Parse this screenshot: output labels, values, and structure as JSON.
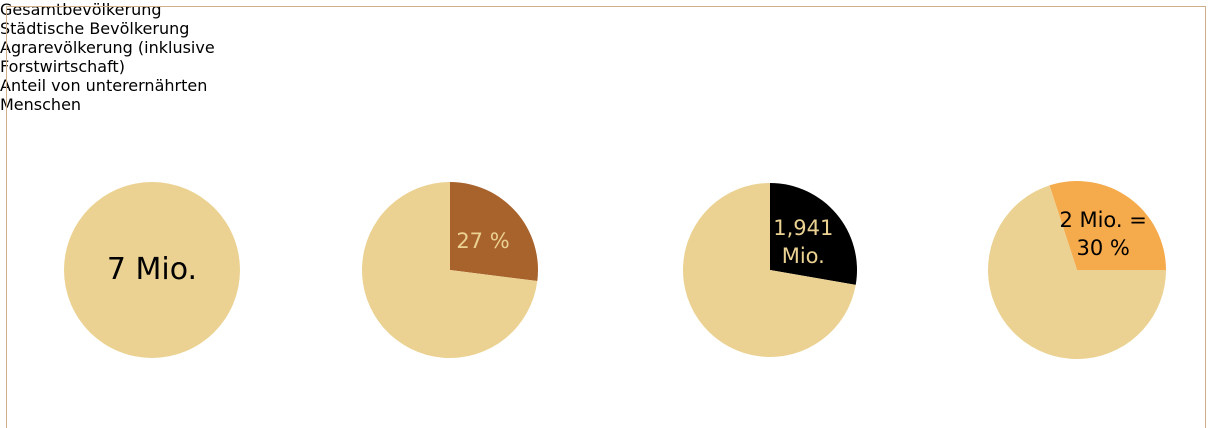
{
  "chart_data": [
    {
      "type": "pie",
      "title": "Gesamtbevölkerung",
      "values": [
        7
      ],
      "value_labels": [
        "7 Mio."
      ],
      "colors": [
        "#ebd292"
      ],
      "label_color": "#000000",
      "start_angle": 0
    },
    {
      "type": "pie",
      "title": "Städtische Bevölkerung",
      "values": [
        27,
        73
      ],
      "value_labels": [
        "27 %",
        null
      ],
      "colors": [
        "#a8622c",
        "#ebd292"
      ],
      "label_color": "#ebd292",
      "start_angle": 0
    },
    {
      "type": "pie",
      "title": "Agrarevölkerung (inklusive Forstwirtschaft)",
      "values": [
        1.941,
        5.059
      ],
      "value_labels": [
        "1,941 Mio.",
        null
      ],
      "colors": [
        "#000000",
        "#ebd292"
      ],
      "label_color": "#ebd292",
      "start_angle": 0
    },
    {
      "type": "pie",
      "title": "Anteil von unterernährten Menschen",
      "values": [
        30,
        70
      ],
      "value_labels": [
        "2 Mio. = 30 %",
        null
      ],
      "colors": [
        "#f5aa4b",
        "#ebd292"
      ],
      "label_color": "#000000",
      "start_angle": -18
    }
  ]
}
